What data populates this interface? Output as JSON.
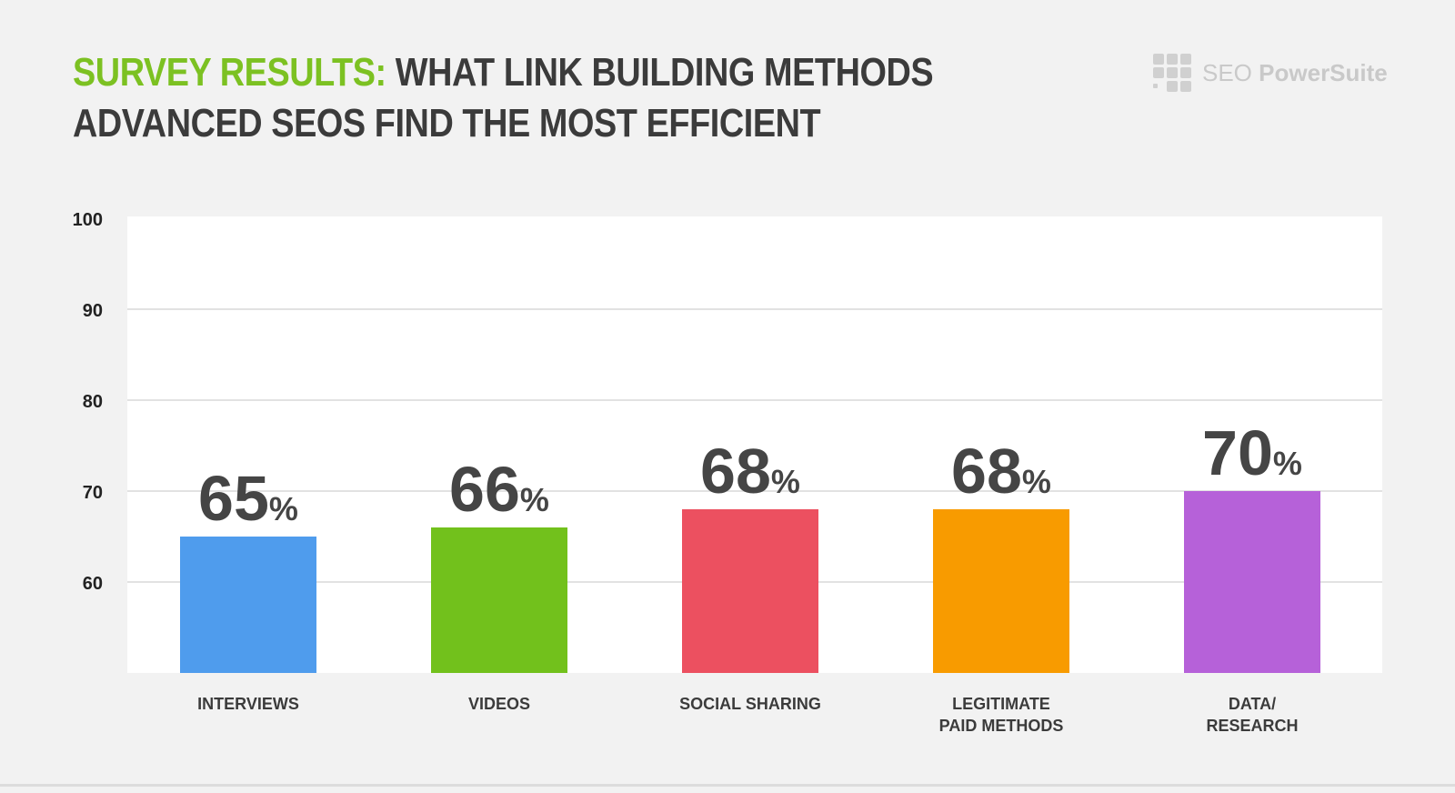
{
  "header": {
    "title_accent": "SURVEY RESULTS:",
    "title_line1": " WHAT LINK BUILDING METHODS",
    "title_line2": "ADVANCED SEOS FIND THE MOST EFFICIENT",
    "logo_name": "SEO",
    "logo_brand": "PowerSuite",
    "logo_icon": "grid-logo-icon"
  },
  "colors": {
    "accent": "#7cc122",
    "text": "#3b3b3b",
    "gridline": "#d8d8d8"
  },
  "chart_data": {
    "type": "bar",
    "title": "SURVEY RESULTS: WHAT LINK BUILDING METHODS ADVANCED SEOS FIND THE MOST EFFICIENT",
    "categories": [
      [
        "INTERVIEWS"
      ],
      [
        "VIDEOS"
      ],
      [
        "SOCIAL SHARING"
      ],
      [
        "LEGITIMATE",
        "PAID METHODS"
      ],
      [
        "DATA/",
        "RESEARCH"
      ]
    ],
    "values": [
      65,
      66,
      68,
      68,
      70
    ],
    "value_labels": [
      "65",
      "66",
      "68",
      "68",
      "70"
    ],
    "value_suffix": "%",
    "colors": [
      "#4f9ced",
      "#72c11c",
      "#ec5060",
      "#f89b00",
      "#b661d9"
    ],
    "ylim": [
      50,
      100
    ],
    "yticks": [
      100,
      90,
      80,
      70,
      60
    ],
    "grid": true,
    "xlabel": "",
    "ylabel": ""
  }
}
